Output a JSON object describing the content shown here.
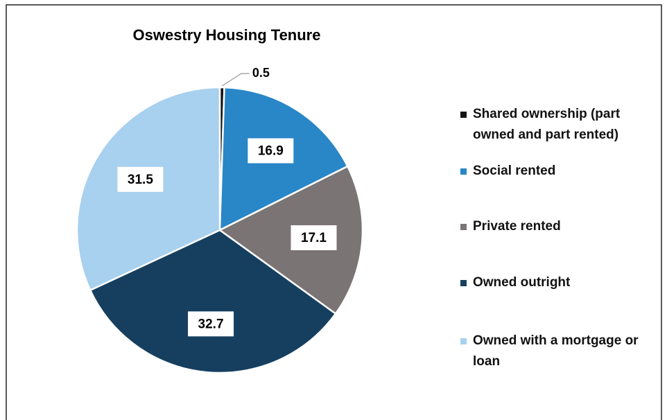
{
  "chart_data": {
    "type": "pie",
    "title": "Oswestry Housing Tenure",
    "categories": [
      "Shared ownership (part owned and part rented)",
      "Social rented",
      "Private rented",
      "Owned outright",
      "Owned with a mortgage or loan"
    ],
    "values": [
      0.5,
      16.9,
      17.1,
      32.7,
      31.5
    ],
    "colors": [
      "#141414",
      "#2986c7",
      "#7a7574",
      "#163f5f",
      "#a8d0ef"
    ],
    "legend": "right"
  }
}
